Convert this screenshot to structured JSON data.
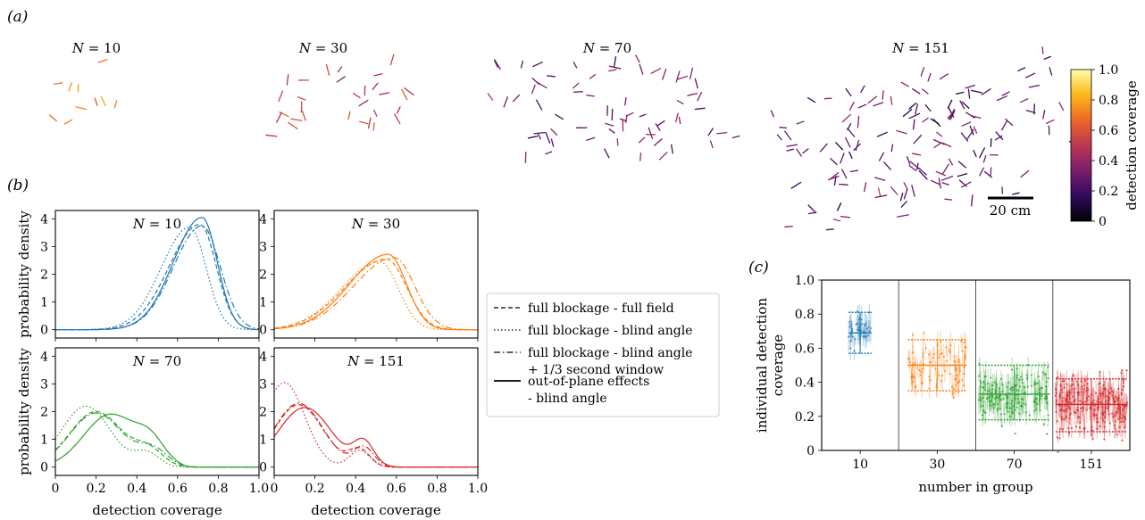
{
  "figure": {
    "panel_a_label": "(a)",
    "panel_b_label": "(b)",
    "panel_c_label": "(c)"
  },
  "panel_a": {
    "groups": [
      {
        "label": "N = 10",
        "n": 10,
        "coverage": 0.7
      },
      {
        "label": "N = 30",
        "n": 30,
        "coverage": 0.5
      },
      {
        "label": "N = 70",
        "n": 70,
        "coverage": 0.33
      },
      {
        "label": "N = 151",
        "n": 151,
        "coverage": 0.27
      }
    ],
    "colorbar": {
      "label": "detection coverage",
      "ticks": [
        "0",
        "0.2",
        "0.4",
        "0.6",
        "0.8",
        "1.0"
      ],
      "tick_values": [
        0,
        0.2,
        0.4,
        0.6,
        0.8,
        1.0
      ],
      "colors": [
        "#000004",
        "#320a5e",
        "#781c6d",
        "#bc3754",
        "#ed6925",
        "#fbb61a",
        "#fcffa4"
      ]
    },
    "scale_bar_label": "20 cm"
  },
  "chart_data": [
    {
      "type": "line",
      "panel": "b",
      "xlabel": "detection coverage",
      "ylabel": "probability density",
      "xlim": [
        0,
        1.0
      ],
      "x_ticks": [
        "0",
        "0.2",
        "0.4",
        "0.6",
        "0.8",
        "1.0"
      ],
      "y_ticks": [
        "0",
        "1",
        "2",
        "3",
        "4"
      ],
      "ylim": [
        -0.3,
        4.3
      ],
      "legend": [
        {
          "label": "full blockage - full field",
          "style": "dashed"
        },
        {
          "label": "full blockage - blind angle",
          "style": "dotted"
        },
        {
          "label": "full blockage - blind angle",
          "label2": "+ 1/3 second window",
          "style": "dashdot"
        },
        {
          "label": "out-of-plane effects",
          "label2": "- blind angle",
          "style": "solid"
        }
      ],
      "subplots": [
        {
          "title": "N = 10",
          "color": "#1f77b4",
          "curves": [
            {
              "style": "dashed",
              "mean": 0.71,
              "sd_left": 0.15,
              "sd_right": 0.08,
              "peak": 3.8
            },
            {
              "style": "dotted",
              "mean": 0.66,
              "sd_left": 0.14,
              "sd_right": 0.08,
              "peak": 3.7
            },
            {
              "style": "dashdot",
              "mean": 0.72,
              "sd_left": 0.14,
              "sd_right": 0.09,
              "peak": 3.75
            },
            {
              "style": "solid",
              "mean": 0.72,
              "sd_left": 0.14,
              "sd_right": 0.075,
              "peak": 4.05
            }
          ]
        },
        {
          "title": "N = 30",
          "color": "#ff7f0e",
          "curves": [
            {
              "style": "dashed",
              "mean": 0.55,
              "sd_left": 0.2,
              "sd_right": 0.1,
              "peak": 2.55
            },
            {
              "style": "dotted",
              "mean": 0.52,
              "sd_left": 0.19,
              "sd_right": 0.09,
              "peak": 2.45
            },
            {
              "style": "dashdot",
              "mean": 0.59,
              "sd_left": 0.2,
              "sd_right": 0.1,
              "peak": 2.6
            },
            {
              "style": "solid",
              "mean": 0.56,
              "sd_left": 0.19,
              "sd_right": 0.09,
              "peak": 2.72
            }
          ]
        },
        {
          "title": "N = 70",
          "color": "#2ca02c",
          "curves": [
            {
              "style": "dashed",
              "bumps": [
                [
                  0.2,
                  0.13,
                  2.0
                ],
                [
                  0.46,
                  0.07,
                  0.55
                ]
              ],
              "tail": 0.6
            },
            {
              "style": "dotted",
              "bumps": [
                [
                  0.15,
                  0.12,
                  2.2
                ],
                [
                  0.45,
                  0.06,
                  0.5
                ]
              ],
              "tail": 0.6
            },
            {
              "style": "dashdot",
              "bumps": [
                [
                  0.2,
                  0.13,
                  1.95
                ],
                [
                  0.48,
                  0.07,
                  0.6
                ]
              ],
              "tail": 0.65
            },
            {
              "style": "solid",
              "bumps": [
                [
                  0.27,
                  0.13,
                  1.9
                ],
                [
                  0.47,
                  0.07,
                  0.75
                ]
              ],
              "tail": 0.6
            }
          ]
        },
        {
          "title": "N = 151",
          "color": "#d62728",
          "curves": [
            {
              "style": "dashed",
              "bumps": [
                [
                  0.12,
                  0.12,
                  2.25
                ],
                [
                  0.42,
                  0.05,
                  0.6
                ]
              ],
              "tail": 0.55
            },
            {
              "style": "dotted",
              "bumps": [
                [
                  0.05,
                  0.1,
                  3.05
                ],
                [
                  0.42,
                  0.05,
                  0.6
                ]
              ],
              "tail": 0.55
            },
            {
              "style": "dashdot",
              "bumps": [
                [
                  0.12,
                  0.12,
                  2.3
                ],
                [
                  0.44,
                  0.05,
                  0.7
                ]
              ],
              "tail": 0.58
            },
            {
              "style": "solid",
              "bumps": [
                [
                  0.15,
                  0.13,
                  2.15
                ],
                [
                  0.44,
                  0.05,
                  0.85
                ]
              ],
              "tail": 0.58
            }
          ]
        }
      ]
    },
    {
      "type": "scatter",
      "panel": "c",
      "xlabel": "number in group",
      "ylabel": "individual detection coverage",
      "categories": [
        "10",
        "30",
        "70",
        "151"
      ],
      "ylim": [
        0,
        1.0
      ],
      "y_ticks": [
        "0",
        "0.2",
        "0.4",
        "0.6",
        "0.8",
        "1.0"
      ],
      "groups": [
        {
          "name": "10",
          "color": "#1f77b4",
          "median": 0.69,
          "q1": 0.65,
          "q3": 0.74,
          "whisker_low": 0.57,
          "whisker_high": 0.81,
          "n_points": 40
        },
        {
          "name": "30",
          "color": "#ff7f0e",
          "median": 0.5,
          "q1": 0.44,
          "q3": 0.57,
          "whisker_low": 0.35,
          "whisker_high": 0.65,
          "n_points": 90
        },
        {
          "name": "70",
          "color": "#2ca02c",
          "median": 0.33,
          "q1": 0.28,
          "q3": 0.4,
          "whisker_low": 0.18,
          "whisker_high": 0.5,
          "n_points": 180
        },
        {
          "name": "151",
          "color": "#d62728",
          "median": 0.27,
          "q1": 0.21,
          "q3": 0.33,
          "whisker_low": 0.11,
          "whisker_high": 0.42,
          "n_points": 260
        }
      ]
    }
  ]
}
